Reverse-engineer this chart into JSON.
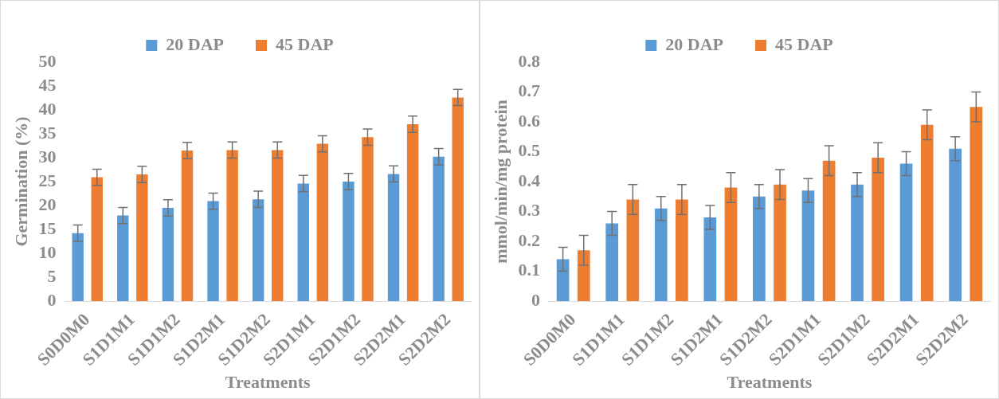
{
  "chart_data": [
    {
      "type": "bar",
      "xlabel": "Treatments",
      "ylabel": "Germination (%)",
      "categories": [
        "S0D0M0",
        "S1D1M1",
        "S1D1M2",
        "S1D2M1",
        "S1D2M2",
        "S2D1M1",
        "S2D1M2",
        "S2D2M1",
        "S2D2M2"
      ],
      "series": [
        {
          "name": "20 DAP",
          "color": "#5b9bd5",
          "values": [
            14.2,
            17.9,
            19.5,
            20.9,
            21.3,
            24.6,
            25.0,
            26.6,
            30.2
          ],
          "errors": [
            1.7,
            1.7,
            1.7,
            1.7,
            1.7,
            1.7,
            1.7,
            1.7,
            1.7
          ]
        },
        {
          "name": "45 DAP",
          "color": "#ed7d31",
          "values": [
            25.9,
            26.5,
            31.5,
            31.6,
            31.6,
            32.9,
            34.3,
            37.0,
            42.6
          ],
          "errors": [
            1.7,
            1.7,
            1.7,
            1.7,
            1.7,
            1.7,
            1.7,
            1.7,
            1.7
          ]
        }
      ],
      "ylim": [
        0,
        50
      ],
      "yticks": [
        0,
        5,
        10,
        15,
        20,
        25,
        30,
        35,
        40,
        45,
        50
      ],
      "grid": false,
      "legend": "top"
    },
    {
      "type": "bar",
      "xlabel": "Treatments",
      "ylabel": "mmol/min/mg protein",
      "categories": [
        "S0D0M0",
        "S1D1M1",
        "S1D1M2",
        "S1D2M1",
        "S1D2M2",
        "S2D1M1",
        "S2D1M2",
        "S2D2M1",
        "S2D2M2"
      ],
      "series": [
        {
          "name": "20 DAP",
          "color": "#5b9bd5",
          "values": [
            0.14,
            0.26,
            0.31,
            0.28,
            0.35,
            0.37,
            0.39,
            0.46,
            0.51
          ],
          "errors": [
            0.04,
            0.04,
            0.04,
            0.04,
            0.04,
            0.04,
            0.04,
            0.04,
            0.04
          ]
        },
        {
          "name": "45 DAP",
          "color": "#ed7d31",
          "values": [
            0.17,
            0.34,
            0.34,
            0.38,
            0.39,
            0.47,
            0.48,
            0.59,
            0.65
          ],
          "errors": [
            0.05,
            0.05,
            0.05,
            0.05,
            0.05,
            0.05,
            0.05,
            0.05,
            0.05
          ]
        }
      ],
      "ylim": [
        0,
        0.8
      ],
      "yticks": [
        0,
        0.1,
        0.2,
        0.3,
        0.4,
        0.5,
        0.6,
        0.7,
        0.8
      ],
      "grid": false,
      "legend": "top"
    }
  ]
}
